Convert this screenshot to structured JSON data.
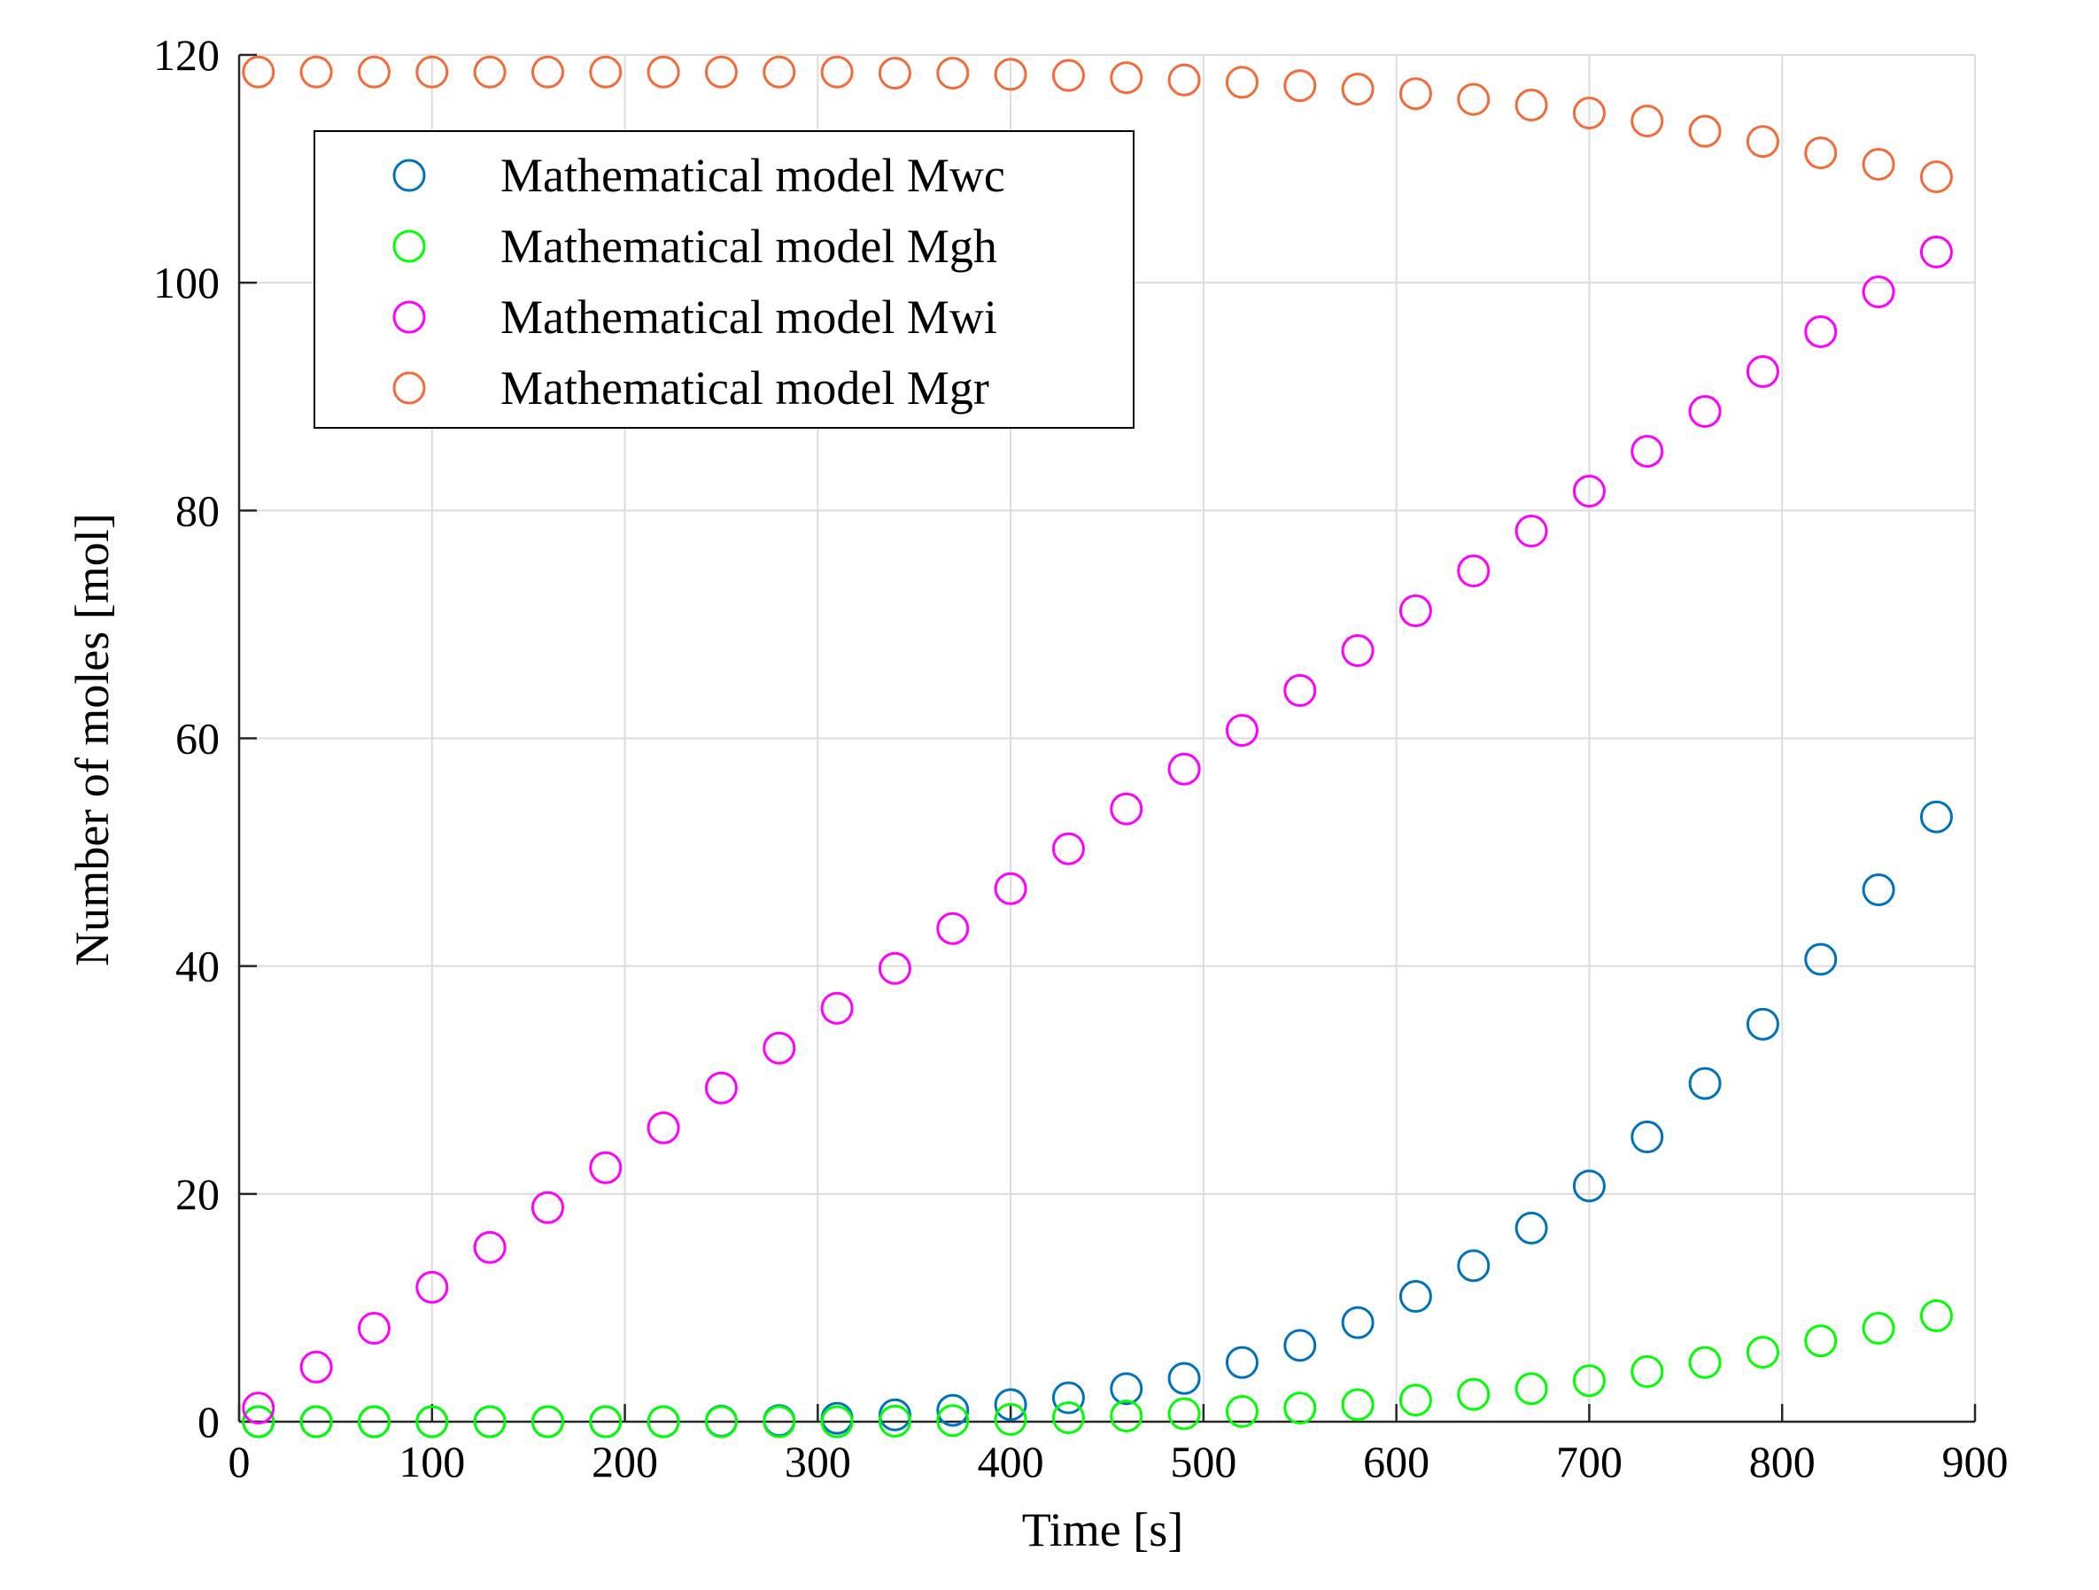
{
  "chart_data": {
    "type": "scatter",
    "title": "",
    "xlabel": "Time [s]",
    "ylabel": "Number of moles [mol]",
    "xlim": [
      0,
      900
    ],
    "ylim": [
      0,
      120
    ],
    "xticks": [
      0,
      100,
      200,
      300,
      400,
      500,
      600,
      700,
      800,
      900
    ],
    "yticks": [
      0,
      20,
      40,
      60,
      80,
      100,
      120
    ],
    "grid": true,
    "legend_position": "top-left",
    "x": [
      10,
      40,
      70,
      100,
      130,
      160,
      190,
      220,
      250,
      280,
      310,
      340,
      370,
      400,
      430,
      460,
      490,
      520,
      550,
      580,
      610,
      640,
      670,
      700,
      730,
      760,
      790,
      820,
      850,
      880
    ],
    "series": [
      {
        "name": "Mathematical model Mwc",
        "color": "#0072BD",
        "marker": "circle-open",
        "values": [
          0,
          0,
          0,
          0,
          0,
          0,
          0,
          0,
          0.05,
          0.1,
          0.3,
          0.6,
          1.0,
          1.5,
          2.1,
          2.9,
          3.8,
          5.2,
          6.7,
          8.7,
          11.0,
          13.7,
          17.0,
          20.7,
          25.0,
          29.7,
          34.9,
          40.6,
          46.7,
          53.1
        ]
      },
      {
        "name": "Mathematical model Mgh",
        "color": "#00FF00",
        "marker": "circle-open",
        "values": [
          0,
          0,
          0,
          0,
          0,
          0,
          0,
          0,
          0,
          0,
          0,
          0.05,
          0.1,
          0.2,
          0.35,
          0.5,
          0.7,
          0.9,
          1.2,
          1.5,
          1.9,
          2.4,
          2.9,
          3.6,
          4.4,
          5.2,
          6.1,
          7.1,
          8.2,
          9.3
        ]
      },
      {
        "name": "Mathematical model Mwi",
        "color": "#FF00FF",
        "marker": "circle-open",
        "values": [
          1.2,
          4.8,
          8.2,
          11.8,
          15.3,
          18.8,
          22.3,
          25.8,
          29.3,
          32.8,
          36.3,
          39.8,
          43.3,
          46.8,
          50.3,
          53.8,
          57.3,
          60.7,
          64.2,
          67.7,
          71.2,
          74.7,
          78.2,
          81.7,
          85.2,
          88.7,
          92.2,
          95.7,
          99.2,
          102.7
        ]
      },
      {
        "name": "Mathematical model Mgr",
        "color": "#F26B38",
        "marker": "circle-open",
        "values": [
          118.5,
          118.5,
          118.5,
          118.5,
          118.5,
          118.5,
          118.5,
          118.5,
          118.5,
          118.5,
          118.5,
          118.4,
          118.4,
          118.3,
          118.2,
          118.0,
          117.8,
          117.6,
          117.3,
          117.0,
          116.6,
          116.1,
          115.6,
          114.9,
          114.2,
          113.3,
          112.4,
          111.4,
          110.4,
          109.3
        ]
      }
    ]
  }
}
